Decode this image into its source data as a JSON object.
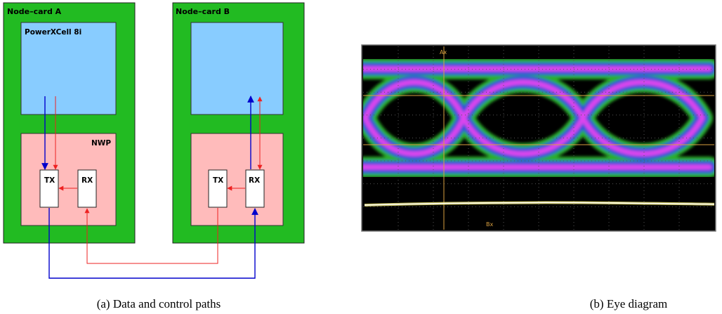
{
  "diagram_a": {
    "node_a_label": "Node–card A",
    "node_b_label": "Node–card B",
    "cpu_label": "PowerXCell 8i",
    "nwp_label": "NWP",
    "tx_label": "TX",
    "rx_label": "RX",
    "caption": "(a) Data and control paths"
  },
  "diagram_b": {
    "cursor_a": "Ax",
    "cursor_b": "Bx",
    "caption": "(b) Eye diagram"
  },
  "colors": {
    "board": "#22bb22",
    "cpu": "#88ccff",
    "nwp": "#ffbbbb",
    "data_path": "#0000cc",
    "control_path": "#ee2222",
    "scope_bg": "#000000",
    "eye_outer": "#33cc33",
    "eye_mid": "#3344ee",
    "eye_peak": "#ee44ee"
  }
}
